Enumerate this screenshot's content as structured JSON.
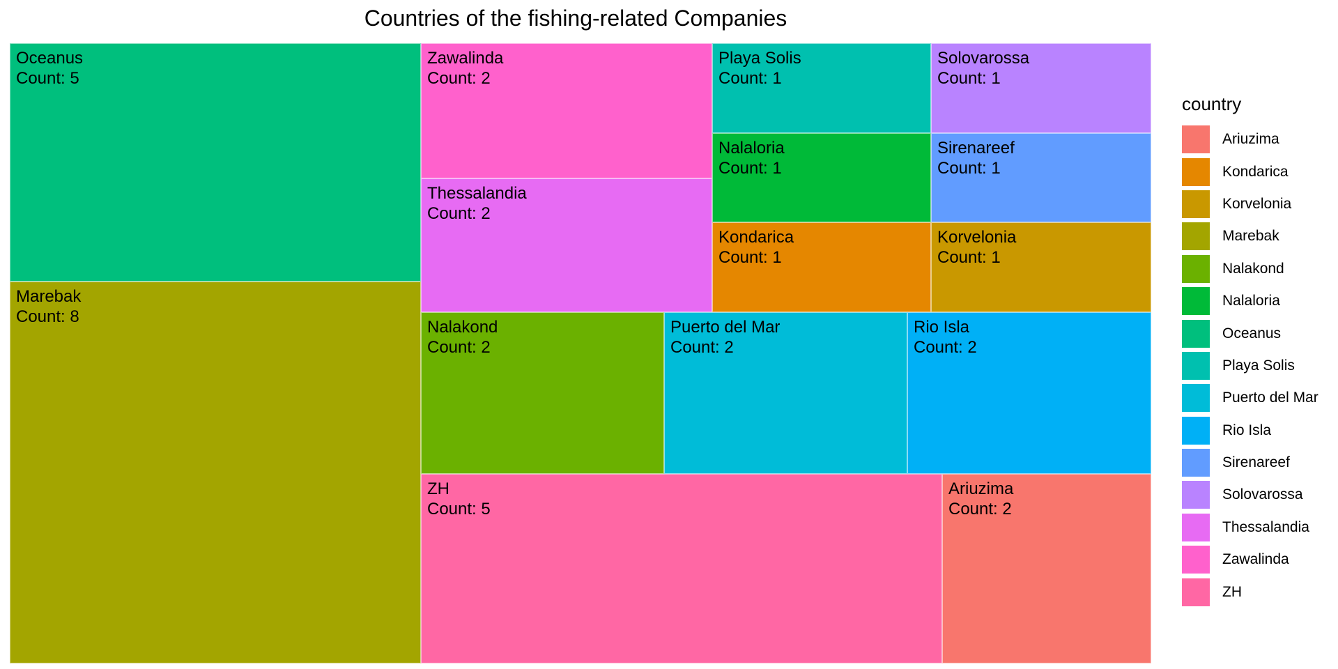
{
  "chart_data": {
    "type": "treemap",
    "title": "Countries of the fishing-related Companies",
    "legend_title": "country",
    "legend_position": "right",
    "count_prefix": "Count: ",
    "tiles": [
      {
        "label": "Marebak",
        "value": 8,
        "color": "#A3A500"
      },
      {
        "label": "Oceanus",
        "value": 5,
        "color": "#00BF7D"
      },
      {
        "label": "ZH",
        "value": 5,
        "color": "#FF67A4"
      },
      {
        "label": "Zawalinda",
        "value": 2,
        "color": "#FF61CC"
      },
      {
        "label": "Thessalandia",
        "value": 2,
        "color": "#E76BF3"
      },
      {
        "label": "Nalakond",
        "value": 2,
        "color": "#6BB100"
      },
      {
        "label": "Puerto del Mar",
        "value": 2,
        "color": "#00BCD8"
      },
      {
        "label": "Rio Isla",
        "value": 2,
        "color": "#00B0F6"
      },
      {
        "label": "Ariuzima",
        "value": 2,
        "color": "#F8766D"
      },
      {
        "label": "Playa Solis",
        "value": 1,
        "color": "#00C0AF"
      },
      {
        "label": "Solovarossa",
        "value": 1,
        "color": "#B983FF"
      },
      {
        "label": "Nalaloria",
        "value": 1,
        "color": "#00BA38"
      },
      {
        "label": "Sirenareef",
        "value": 1,
        "color": "#619CFF"
      },
      {
        "label": "Kondarica",
        "value": 1,
        "color": "#E58700"
      },
      {
        "label": "Korvelonia",
        "value": 1,
        "color": "#C99800"
      }
    ],
    "legend": [
      {
        "label": "Ariuzima",
        "color": "#F8766D"
      },
      {
        "label": "Kondarica",
        "color": "#E58700"
      },
      {
        "label": "Korvelonia",
        "color": "#C99800"
      },
      {
        "label": "Marebak",
        "color": "#A3A500"
      },
      {
        "label": "Nalakond",
        "color": "#6BB100"
      },
      {
        "label": "Nalaloria",
        "color": "#00BA38"
      },
      {
        "label": "Oceanus",
        "color": "#00BF7D"
      },
      {
        "label": "Playa Solis",
        "color": "#00C0AF"
      },
      {
        "label": "Puerto del Mar",
        "color": "#00BCD8"
      },
      {
        "label": "Rio Isla",
        "color": "#00B0F6"
      },
      {
        "label": "Sirenareef",
        "color": "#619CFF"
      },
      {
        "label": "Solovarossa",
        "color": "#B983FF"
      },
      {
        "label": "Thessalandia",
        "color": "#E76BF3"
      },
      {
        "label": "Zawalinda",
        "color": "#FF61CC"
      },
      {
        "label": "ZH",
        "color": "#FF67A4"
      }
    ]
  }
}
